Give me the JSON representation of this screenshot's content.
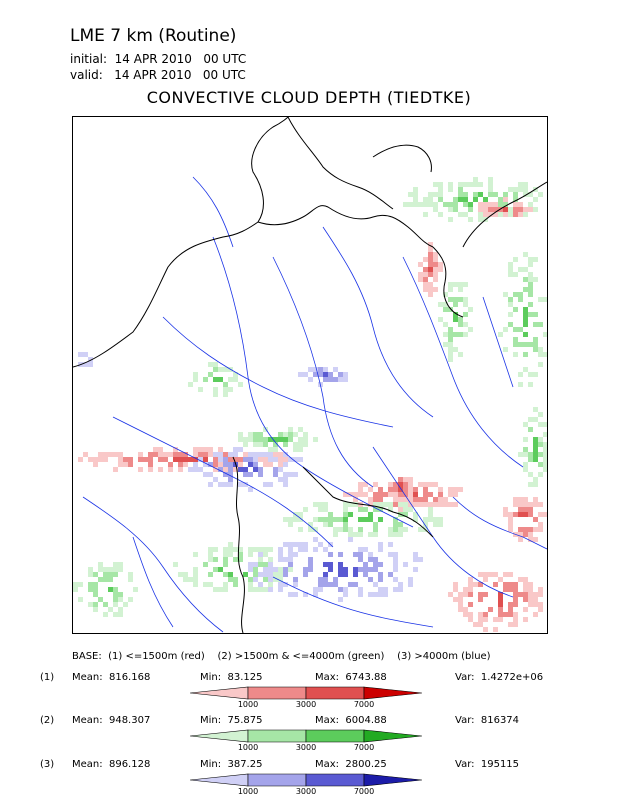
{
  "header": {
    "model": "LME 7 km (Routine)",
    "initial": "initial:  14 APR 2010   00 UTC",
    "valid": "valid:   14 APR 2010   00 UTC",
    "title": "CONVECTIVE CLOUD DEPTH (TIEDTKE)"
  },
  "base_line": "BASE:  (1) <=1500m (red)    (2) >1500m & <=4000m (green)    (3) >4000m (blue)",
  "colors": {
    "red": [
      "#f9c8c8",
      "#ee8a8a",
      "#e05050",
      "#cc0000"
    ],
    "green": [
      "#d2f2d2",
      "#a6e6a6",
      "#5ccc5c",
      "#22aa22"
    ],
    "blue": [
      "#d0d0f6",
      "#a4a4ea",
      "#5a5ad2",
      "#1c1ca8"
    ],
    "coast": "#000000",
    "river": "#1a33e6"
  },
  "legend": [
    {
      "index": "(1)",
      "mean": "Mean:  816.168",
      "min": "Min:  83.125",
      "max": "Max:  6743.88",
      "var": "Var:  1.4272e+06",
      "color": "red"
    },
    {
      "index": "(2)",
      "mean": "Mean:  948.307",
      "min": "Min:  75.875",
      "max": "Max:  6004.88",
      "var": "Var:  816374",
      "color": "green"
    },
    {
      "index": "(3)",
      "mean": "Mean:  896.128",
      "min": "Min:  387.25",
      "max": "Max:  2800.25",
      "var": "Var:  195115",
      "color": "blue"
    }
  ],
  "ticks": [
    "1000",
    "3000",
    "7000"
  ],
  "map_icons": {
    "coastline": "coastline-icon",
    "river": "river-icon"
  }
}
